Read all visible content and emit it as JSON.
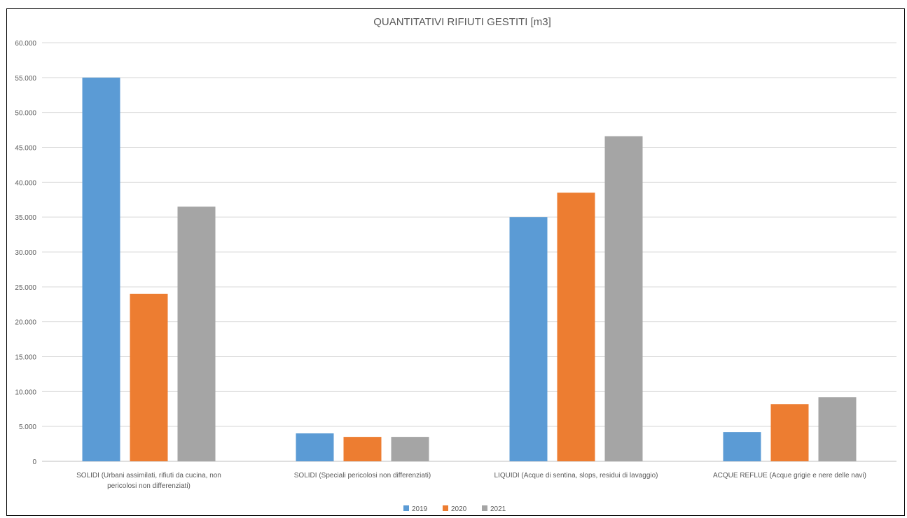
{
  "chart_data": {
    "type": "bar",
    "title": "QUANTITATIVI RIFIUTI GESTITI [m3]",
    "categories": [
      [
        "SOLIDI (Urbani assimilati, rifiuti da cucina, non",
        "pericolosi non differenziati)"
      ],
      [
        "SOLIDI (Speciali pericolosi non differenziati)"
      ],
      [
        "LIQUIDI (Acque di sentina, slops, residui di lavaggio)"
      ],
      [
        "ACQUE REFLUE (Acque grigie e nere delle navi)"
      ]
    ],
    "series": [
      {
        "name": "2019",
        "color": "#5B9BD5",
        "values": [
          55000,
          4000,
          35000,
          4200
        ]
      },
      {
        "name": "2020",
        "color": "#ED7D31",
        "values": [
          24000,
          3500,
          38500,
          8200
        ]
      },
      {
        "name": "2021",
        "color": "#A5A5A5",
        "values": [
          36500,
          3500,
          46600,
          9200
        ]
      }
    ],
    "ylim": [
      0,
      60000
    ],
    "yticks": [
      "0",
      "5.000",
      "10.000",
      "15.000",
      "20.000",
      "25.000",
      "30.000",
      "35.000",
      "40.000",
      "45.000",
      "50.000",
      "55.000",
      "60.000"
    ],
    "grid": true,
    "legend": "bottom"
  }
}
